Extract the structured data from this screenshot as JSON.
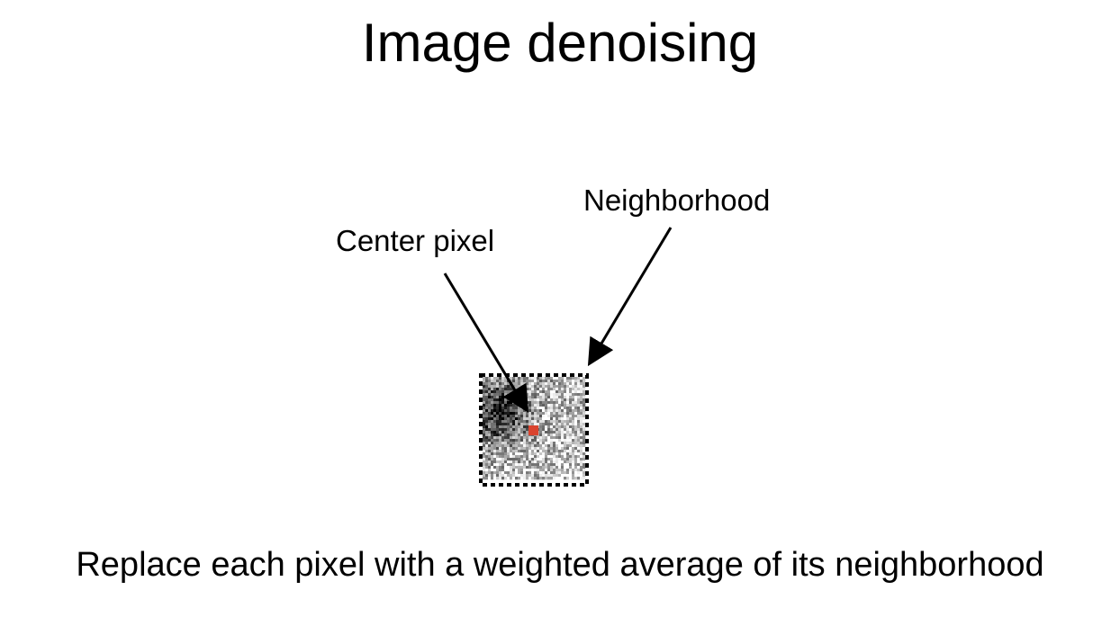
{
  "title": "Image denoising",
  "labels": {
    "neighborhood": "Neighborhood",
    "center_pixel": "Center pixel"
  },
  "caption": "Replace each pixel with a weighted average of its neighborhood",
  "colors": {
    "center_pixel": "#d9442f",
    "border": "#000000",
    "arrow": "#000000"
  },
  "icons": {
    "arrow": "arrow-icon"
  }
}
